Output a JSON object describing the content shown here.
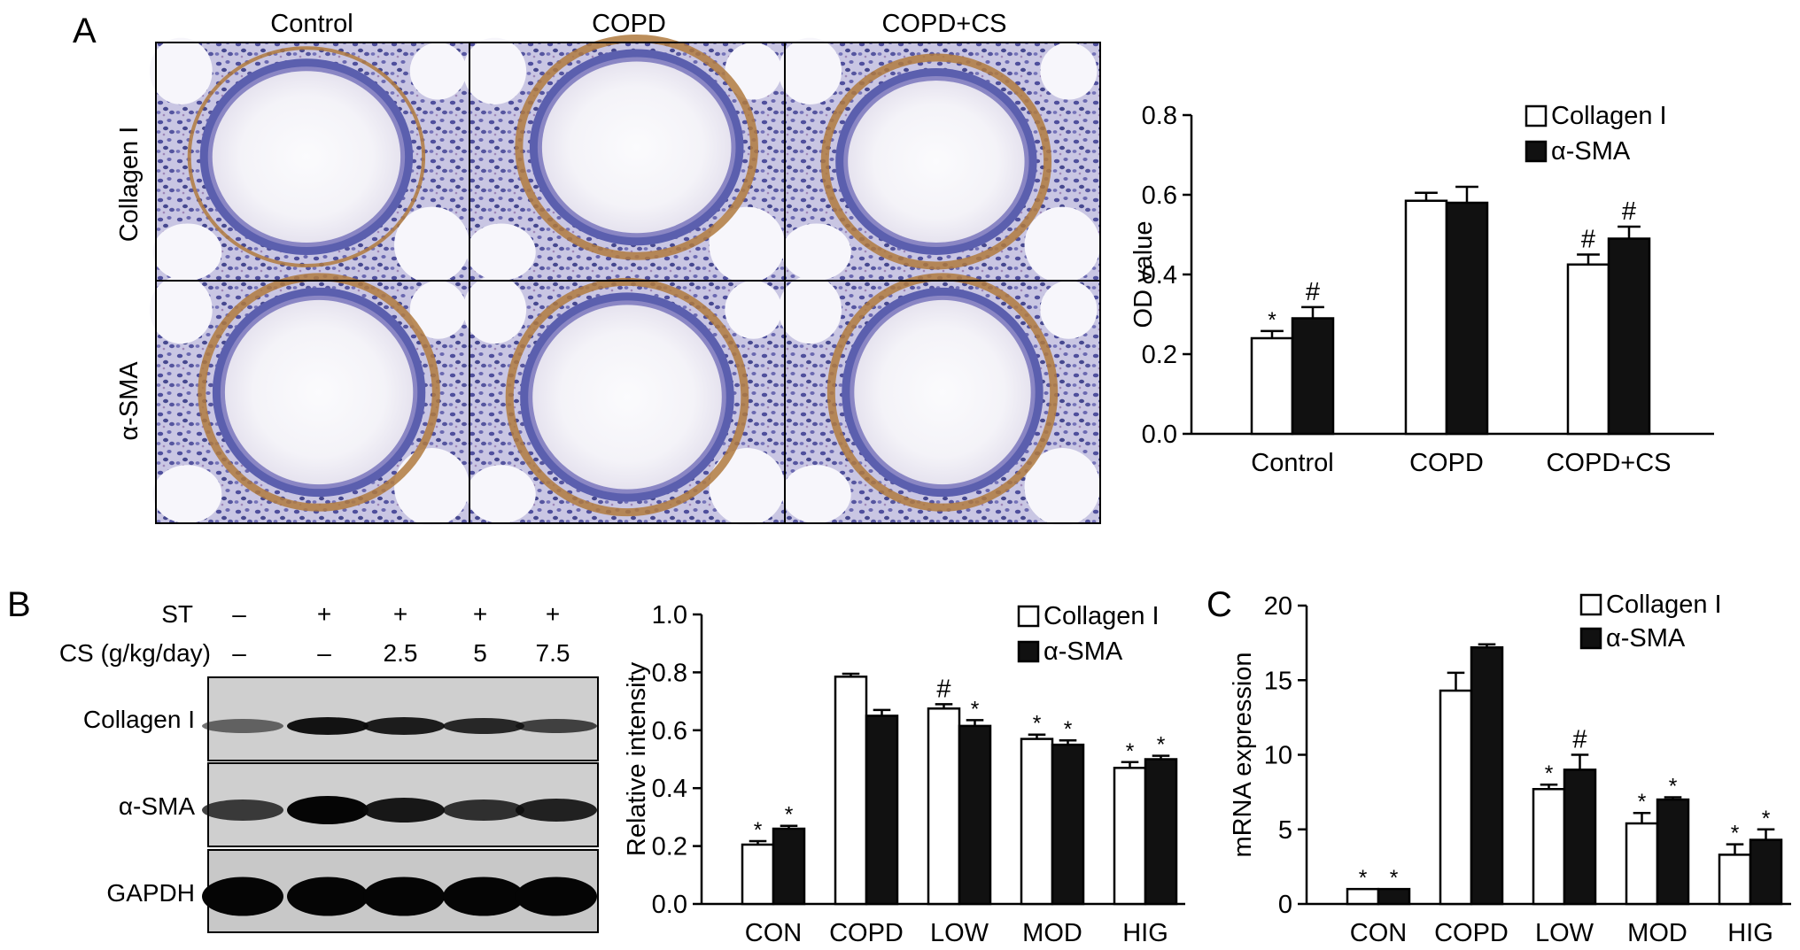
{
  "panel_a": {
    "letter": "A",
    "columns": [
      "Control",
      "COPD",
      "COPD+CS"
    ],
    "rows": [
      "Collagen I",
      "α-SMA"
    ]
  },
  "panel_b": {
    "letter": "B",
    "row_labels": [
      "ST",
      "CS (g/kg/day)"
    ],
    "st_values": [
      "–",
      "+",
      "+",
      "+",
      "+"
    ],
    "cs_values": [
      "–",
      "–",
      "2.5",
      "5",
      "7.5"
    ],
    "blot_labels": [
      "Collagen I",
      "α-SMA",
      "GAPDH"
    ]
  },
  "panel_c": {
    "letter": "C"
  },
  "colors": {
    "collagen": "#ffffff",
    "sma": "#111111",
    "stain_brown": "#b07a3e",
    "stain_blue": "#5b5fae"
  },
  "chart_data": [
    {
      "type": "bar",
      "id": "A",
      "categories": [
        "Control",
        "COPD",
        "COPD+CS"
      ],
      "ylabel": "OD value",
      "ylim": [
        0,
        0.8
      ],
      "yticks": [
        "0.0",
        "0.2",
        "0.4",
        "0.6",
        "0.8"
      ],
      "legend_position": "top-right",
      "series": [
        {
          "name": "Collagen I",
          "values": [
            0.24,
            0.585,
            0.425
          ],
          "errors": [
            0.018,
            0.02,
            0.025
          ],
          "marks": [
            "*",
            "",
            "#"
          ]
        },
        {
          "name": "α-SMA",
          "values": [
            0.29,
            0.58,
            0.49
          ],
          "errors": [
            0.028,
            0.04,
            0.03
          ],
          "marks": [
            "#",
            "",
            "#"
          ]
        }
      ]
    },
    {
      "type": "bar",
      "id": "B",
      "categories": [
        "CON",
        "COPD",
        "LOW",
        "MOD",
        "HIG"
      ],
      "ylabel": "Relative intensity",
      "ylim": [
        0,
        1.0
      ],
      "yticks": [
        "0.0",
        "0.2",
        "0.4",
        "0.6",
        "0.8",
        "1.0"
      ],
      "legend_position": "top-right",
      "series": [
        {
          "name": "Collagen I",
          "values": [
            0.205,
            0.785,
            0.675,
            0.57,
            0.47
          ],
          "errors": [
            0.012,
            0.01,
            0.015,
            0.015,
            0.02
          ],
          "marks": [
            "*",
            "",
            "#",
            "*",
            "*"
          ]
        },
        {
          "name": "α-SMA",
          "values": [
            0.26,
            0.65,
            0.615,
            0.55,
            0.5
          ],
          "errors": [
            0.01,
            0.02,
            0.02,
            0.015,
            0.012
          ],
          "marks": [
            "*",
            "",
            "*",
            "*",
            "*"
          ]
        }
      ]
    },
    {
      "type": "bar",
      "id": "C",
      "categories": [
        "CON",
        "COPD",
        "LOW",
        "MOD",
        "HIG"
      ],
      "ylabel": "mRNA expression",
      "ylim": [
        0,
        20
      ],
      "yticks": [
        "0",
        "5",
        "10",
        "15",
        "20"
      ],
      "legend_position": "top-right",
      "series": [
        {
          "name": "Collagen I",
          "values": [
            1.0,
            14.3,
            7.7,
            5.4,
            3.3
          ],
          "errors": [
            0.0,
            1.2,
            0.3,
            0.7,
            0.7
          ],
          "marks": [
            "*",
            "",
            "*",
            "*",
            "*"
          ]
        },
        {
          "name": "α-SMA",
          "values": [
            1.0,
            17.2,
            9.0,
            7.0,
            4.3
          ],
          "errors": [
            0.0,
            0.2,
            1.0,
            0.15,
            0.7
          ],
          "marks": [
            "*",
            "",
            "#",
            "*",
            "*"
          ]
        }
      ]
    }
  ]
}
